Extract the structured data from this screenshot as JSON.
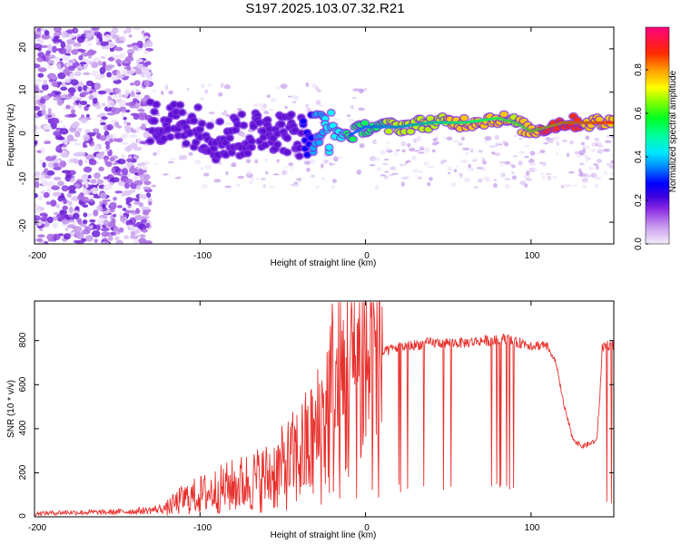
{
  "title": "S197.2025.103.07.32.R21",
  "colors": {
    "snr_line": "#e8302c",
    "spectrum_scale": [
      "#f4ecfb",
      "#cfa8ef",
      "#8a2be2",
      "#5a0fd0",
      "#0000ff",
      "#00b0ff",
      "#00ffff",
      "#00ff55",
      "#b6ff00",
      "#ffcc00",
      "#ff2a00",
      "#ff007f"
    ]
  },
  "chart_data": [
    {
      "type": "heatmap",
      "title": "S197.2025.103.07.32.R21",
      "xlabel": "Height of straight line (km)",
      "ylabel": "Frequency (Hz)",
      "xlim": [
        -200,
        150
      ],
      "ylim": [
        -25,
        25
      ],
      "xticks": [
        "-200",
        "-100",
        "0",
        "100"
      ],
      "yticks": [
        "-20",
        "-10",
        "0",
        "10",
        "20"
      ],
      "colorbar": {
        "label": "Normalized spectral amplitude",
        "range": [
          0,
          1
        ],
        "ticks": [
          "0.0",
          "0.2",
          "0.4",
          "0.6",
          "0.8"
        ]
      },
      "ridge": {
        "description_x": [
          -130,
          -110,
          -100,
          -90,
          -80,
          -70,
          -60,
          -50,
          -40,
          -30,
          -20,
          -10,
          0,
          20,
          40,
          60,
          80,
          90,
          100,
          120,
          150
        ],
        "frequency_y": [
          3,
          3,
          2,
          -1,
          0,
          0,
          2,
          1,
          0,
          1,
          1,
          0,
          2,
          2,
          3,
          3,
          4,
          3,
          1,
          3,
          3
        ],
        "amplitude": [
          0.25,
          0.25,
          0.2,
          0.2,
          0.2,
          0.2,
          0.25,
          0.25,
          0.25,
          0.4,
          0.5,
          0.55,
          0.6,
          0.65,
          0.7,
          0.75,
          0.8,
          0.7,
          0.8,
          0.85,
          0.75
        ]
      }
    },
    {
      "type": "line",
      "xlabel": "Height of straight line (km)",
      "ylabel": "SNR (10 * v/v)",
      "xlim": [
        -200,
        150
      ],
      "ylim": [
        0,
        980
      ],
      "xticks": [
        "-200",
        "-100",
        "0",
        "100"
      ],
      "yticks": [
        "0",
        "200",
        "400",
        "600",
        "800"
      ],
      "series": [
        {
          "x": [
            -200,
            -180,
            -160,
            -140,
            -130,
            -120,
            -110,
            -100,
            -90,
            -80,
            -70,
            -60,
            -50,
            -40,
            -30,
            -25,
            -20,
            -15,
            -10,
            -5,
            0,
            5,
            10,
            15,
            20,
            30,
            40,
            50,
            60,
            70,
            80,
            85,
            90,
            95,
            100,
            105,
            110,
            115,
            120,
            125,
            130,
            135,
            140,
            143,
            145,
            148,
            150
          ],
          "y": [
            15,
            20,
            20,
            25,
            30,
            40,
            80,
            100,
            120,
            140,
            160,
            180,
            220,
            280,
            350,
            450,
            550,
            550,
            650,
            720,
            700,
            700,
            740,
            760,
            770,
            780,
            790,
            790,
            790,
            800,
            800,
            810,
            790,
            790,
            780,
            780,
            770,
            700,
            500,
            360,
            320,
            330,
            350,
            760,
            780,
            780,
            780
          ]
        }
      ]
    }
  ]
}
